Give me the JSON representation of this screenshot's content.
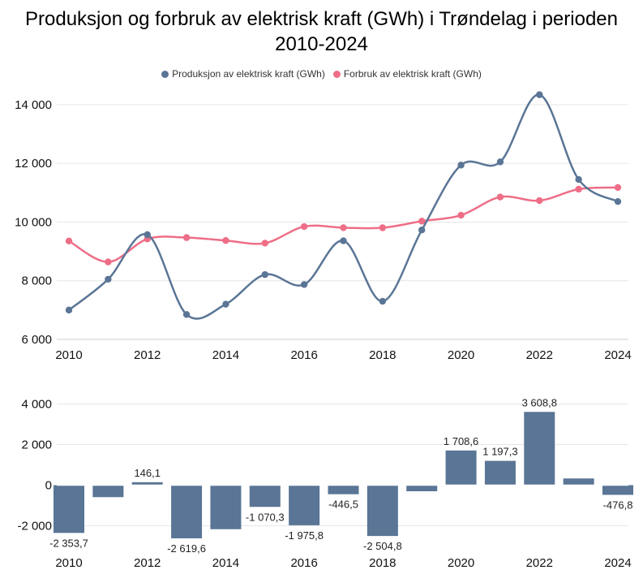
{
  "title_line1": "Produksjon og forbruk av elektrisk kraft (GWh) i Trøndelag i perioden",
  "title_line2": "2010-2024",
  "colors": {
    "production": "#5a7595",
    "consumption": "#ee6e87",
    "bars": "#5a7595",
    "grid": "#e6e6e6"
  },
  "chart_data": [
    {
      "type": "line",
      "x": [
        2010,
        2011,
        2012,
        2013,
        2014,
        2015,
        2016,
        2017,
        2018,
        2019,
        2020,
        2021,
        2022,
        2023,
        2024
      ],
      "series": [
        {
          "name": "Produksjon av elektrisk kraft (GWh)",
          "values": [
            7000,
            8050,
            9570,
            6850,
            7200,
            8210,
            7870,
            9360,
            7300,
            9730,
            11940,
            12050,
            14340,
            11450,
            10700
          ]
        },
        {
          "name": "Forbruk av elektrisk kraft (GWh)",
          "values": [
            9353.7,
            8640,
            9423.9,
            9469.6,
            9370,
            9280.3,
            9845.8,
            9806.5,
            9804.8,
            10030,
            10231.4,
            10852.7,
            10731.2,
            11120,
            11176.8
          ]
        }
      ],
      "ylim": [
        6000,
        14800
      ],
      "yticks": [
        6000,
        8000,
        10000,
        12000,
        14000
      ],
      "ytick_labels": [
        "6 000",
        "8 000",
        "10 000",
        "12 000",
        "14 000"
      ],
      "xticks": [
        2010,
        2012,
        2014,
        2016,
        2018,
        2020,
        2022,
        2024
      ],
      "xtick_labels": [
        "2010",
        "2012",
        "2014",
        "2016",
        "2018",
        "2020",
        "2022",
        "2024"
      ],
      "legend": "top",
      "grid": true
    },
    {
      "type": "bar",
      "categories": [
        2010,
        2011,
        2012,
        2013,
        2014,
        2015,
        2016,
        2017,
        2018,
        2019,
        2020,
        2021,
        2022,
        2023,
        2024
      ],
      "values": [
        -2353.7,
        -590,
        146.1,
        -2619.6,
        -2170,
        -1070.3,
        -1975.8,
        -446.5,
        -2504.8,
        -300,
        1708.6,
        1197.3,
        3608.8,
        330,
        -476.8
      ],
      "data_labels": [
        "-2 353,7",
        "",
        "146,1",
        "-2 619,6",
        "",
        "-1 070,3",
        "-1 975,8",
        "-446,5",
        "-2 504,8",
        "",
        "1 708,6",
        "1 197,3",
        "3 608,8",
        "",
        "-476,8"
      ],
      "ylim": [
        -2700,
        4500
      ],
      "yticks": [
        -2000,
        0,
        2000,
        4000
      ],
      "ytick_labels": [
        "-2 000",
        "0",
        "2 000",
        "4 000"
      ],
      "xticks": [
        2010,
        2012,
        2014,
        2016,
        2018,
        2020,
        2022,
        2024
      ],
      "xtick_labels": [
        "2010",
        "2012",
        "2014",
        "2016",
        "2018",
        "2020",
        "2022",
        "2024"
      ],
      "grid": true
    }
  ]
}
